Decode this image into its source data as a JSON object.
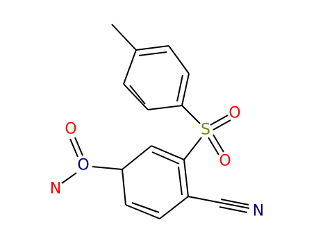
{
  "atoms": [
    {
      "label": "S"
    },
    {
      "label": "O"
    },
    {
      "label": "O"
    },
    {
      "label": "N"
    },
    {
      "label": "O"
    },
    {
      "label": "O"
    },
    {
      "label": "N"
    }
  ]
}
